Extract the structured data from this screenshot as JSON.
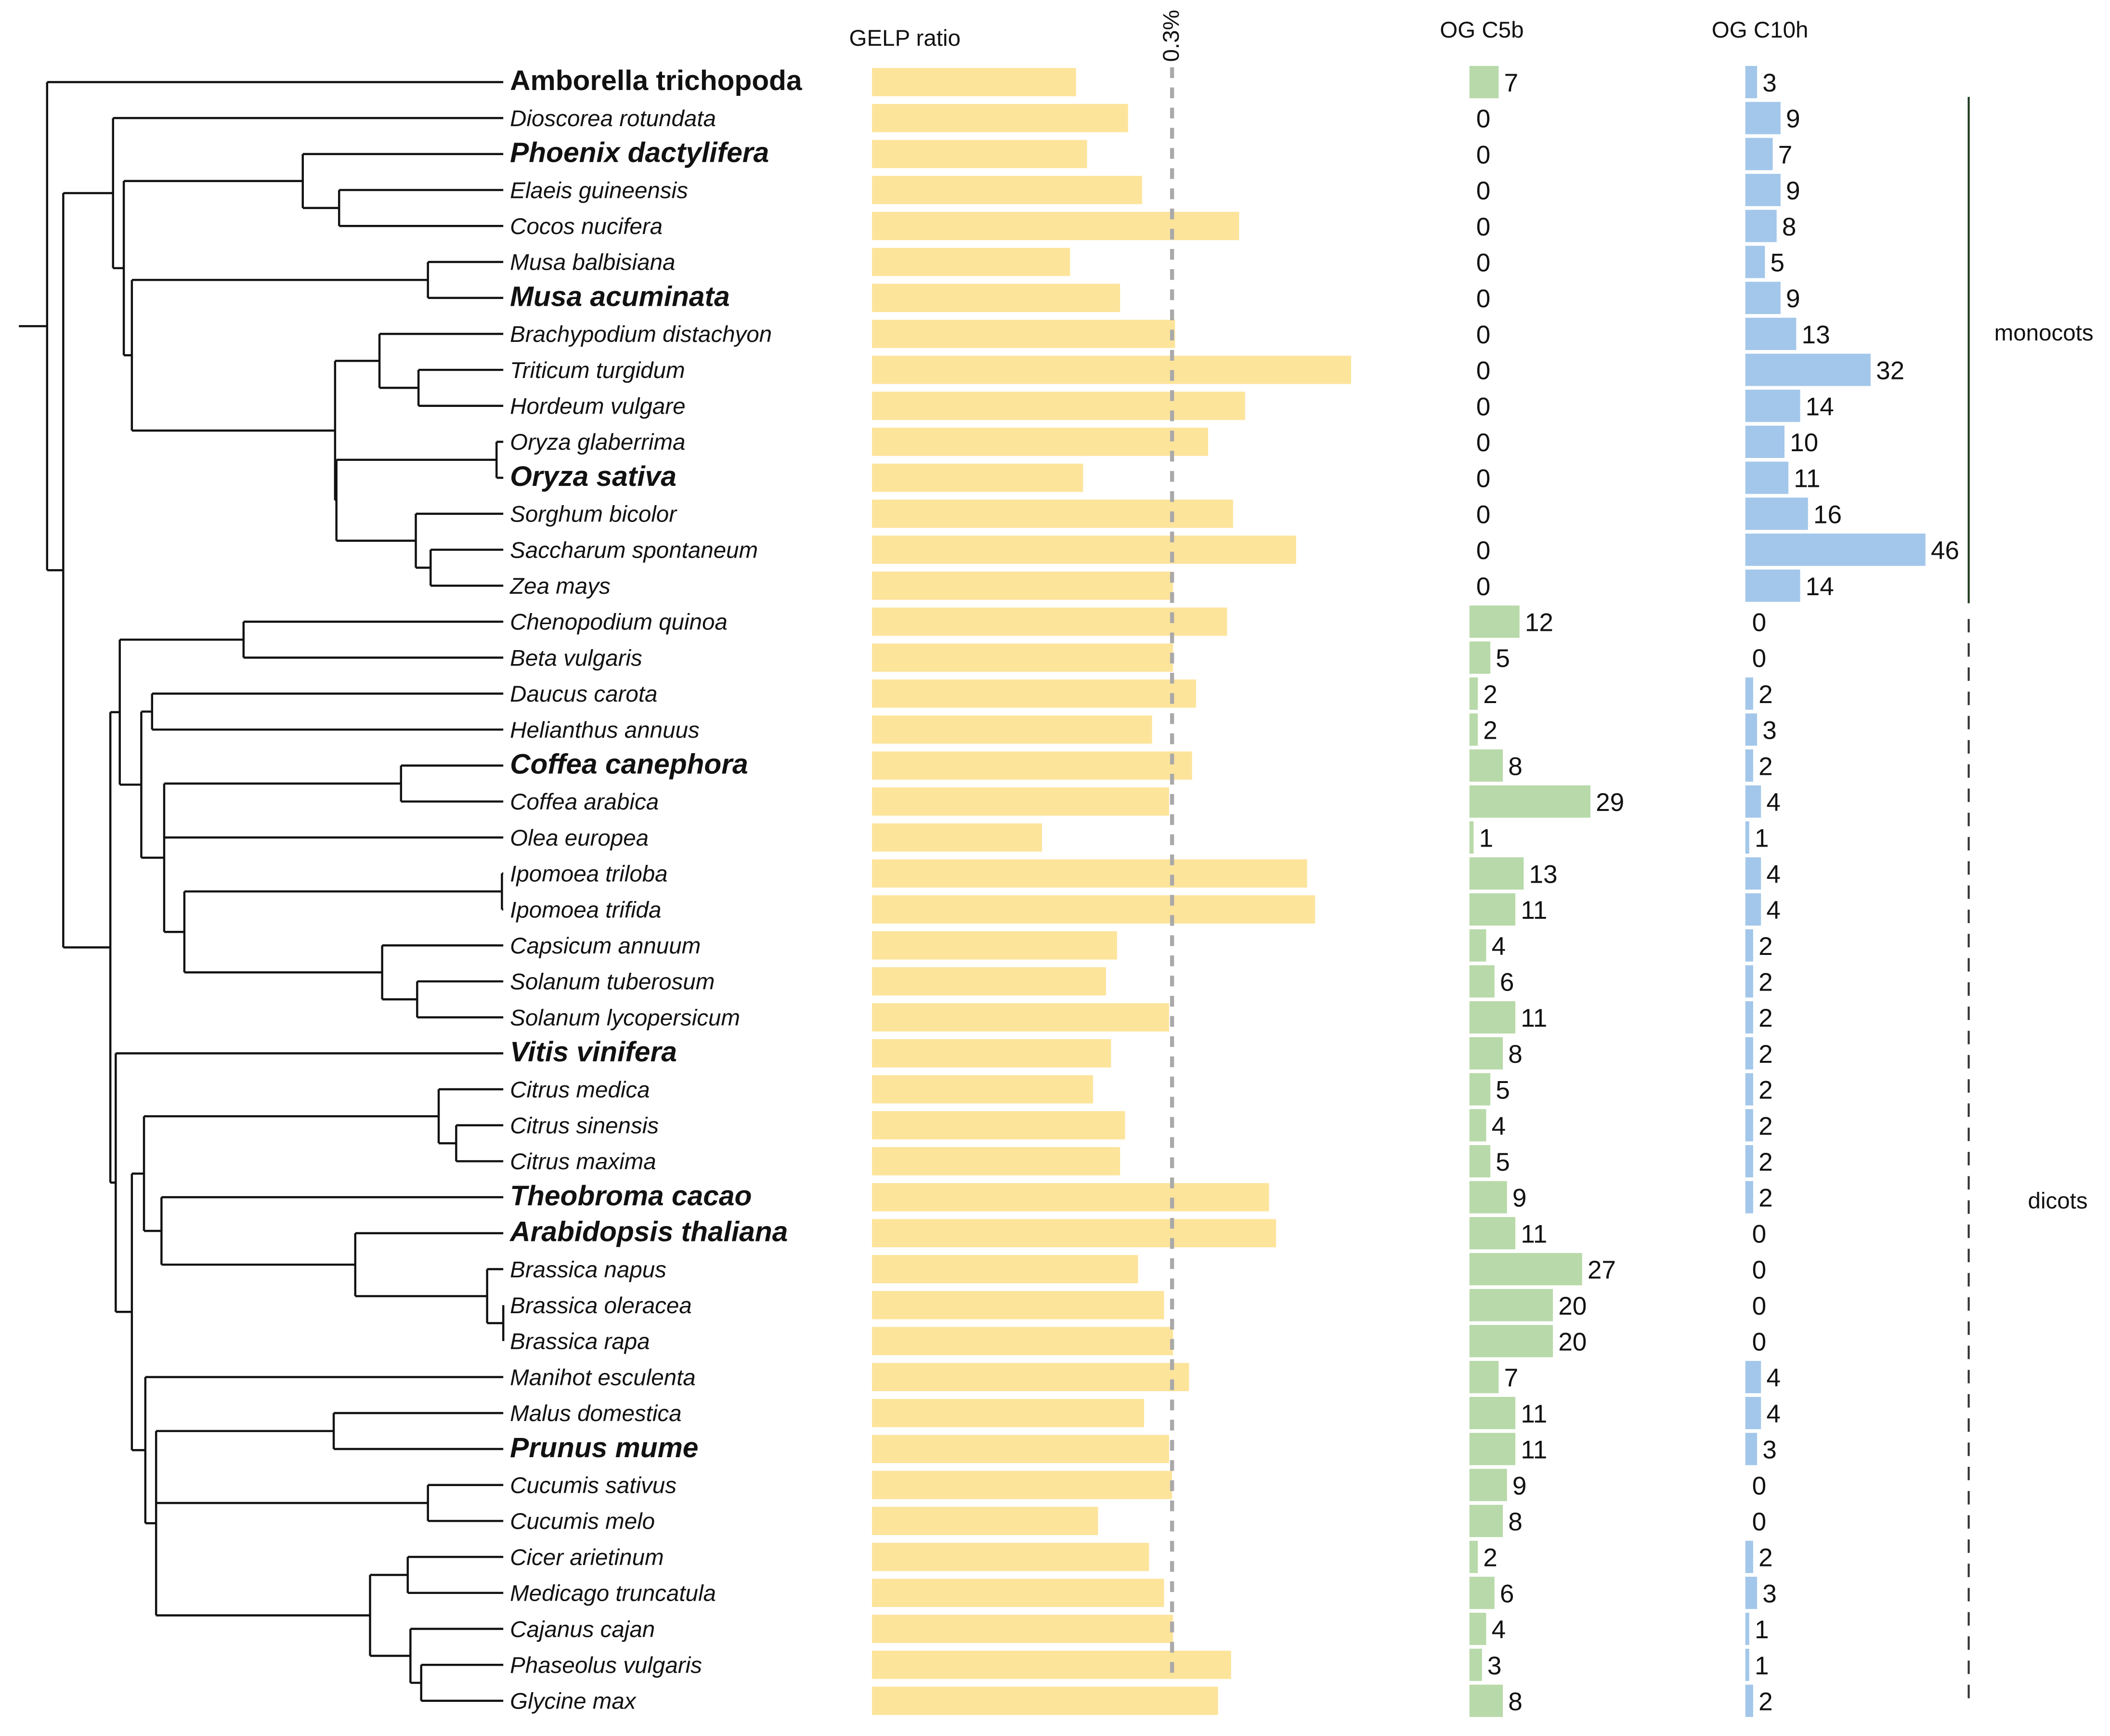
{
  "chart_data": {
    "type": "bar",
    "description_free": true,
    "columns": {
      "gelp": "GELP ratio",
      "c5b": "OG C5b",
      "c10h": "OG C10h"
    },
    "reference_line": {
      "label": "0.3%",
      "value": 0.3
    },
    "groups": [
      {
        "label": "monocots",
        "from": 1,
        "to": 14,
        "style": "solid"
      },
      {
        "label": "dicots",
        "from": 15,
        "to": 45,
        "style": "dashed"
      }
    ],
    "tree": [
      0,
      [
        [
          1,
          [
            [
              2,
              [
                3,
                4
              ]
            ],
            [
              [
                5,
                6
              ],
              [
                [
                  7,
                  [
                    8,
                    9
                  ]
                ],
                [
                  [
                    10,
                    11
                  ],
                  [
                    12,
                    [
                      13,
                      14
                    ]
                  ]
                ]
              ]
            ]
          ]
        ],
        [
          [
            [
              15,
              16
            ],
            [
              [
                17,
                18
              ],
              [
                [
                  19,
                  20
                ],
                21,
                [
                  [
                    22,
                    23
                  ],
                  [
                    24,
                    [
                      25,
                      26
                    ]
                  ]
                ]
              ]
            ]
          ],
          [
            27,
            [
              [
                [
                  28,
                  [
                    29,
                    30
                  ]
                ],
                [
                  31,
                  [
                    32,
                    [
                      33,
                      [
                        34,
                        35
                      ]
                    ]
                  ]
                ]
              ],
              [
                36,
                [
                  [
                    37,
                    38
                  ],
                  [
                    39,
                    40
                  ],
                  [
                    [
                      41,
                      42
                    ],
                    [
                      43,
                      [
                        44,
                        45
                      ]
                    ]
                  ]
                ]
              ]
            ]
          ]
        ]
      ]
    ],
    "species": [
      {
        "name": "Amborella trichopoda",
        "style": "boldupright",
        "gelp": 0.204,
        "c5b": 7,
        "c10h": 3
      },
      {
        "name": "Dioscorea rotundata",
        "style": "italic",
        "gelp": 0.256,
        "c5b": 0,
        "c10h": 9
      },
      {
        "name": "Phoenix dactylifera",
        "style": "bold",
        "gelp": 0.215,
        "c5b": 0,
        "c10h": 7
      },
      {
        "name": "Elaeis guineensis",
        "style": "italic",
        "gelp": 0.27,
        "c5b": 0,
        "c10h": 9
      },
      {
        "name": "Cocos nucifera",
        "style": "italic",
        "gelp": 0.367,
        "c5b": 0,
        "c10h": 8
      },
      {
        "name": "Musa balbisiana",
        "style": "italic",
        "gelp": 0.198,
        "c5b": 0,
        "c10h": 5
      },
      {
        "name": "Musa acuminata",
        "style": "bold",
        "gelp": 0.248,
        "c5b": 0,
        "c10h": 9
      },
      {
        "name": "Brachypodium distachyon",
        "style": "italic",
        "gelp": 0.303,
        "c5b": 0,
        "c10h": 13
      },
      {
        "name": "Triticum turgidum",
        "style": "italic",
        "gelp": 0.479,
        "c5b": 0,
        "c10h": 32
      },
      {
        "name": "Hordeum vulgare",
        "style": "italic",
        "gelp": 0.373,
        "c5b": 0,
        "c10h": 14
      },
      {
        "name": "Oryza glaberrima",
        "style": "italic",
        "gelp": 0.336,
        "c5b": 0,
        "c10h": 10
      },
      {
        "name": "Oryza sativa",
        "style": "bold",
        "gelp": 0.211,
        "c5b": 0,
        "c10h": 11
      },
      {
        "name": "Sorghum bicolor",
        "style": "italic",
        "gelp": 0.361,
        "c5b": 0,
        "c10h": 16
      },
      {
        "name": "Saccharum spontaneum",
        "style": "italic",
        "gelp": 0.424,
        "c5b": 0,
        "c10h": 46
      },
      {
        "name": "Zea mays",
        "style": "italic",
        "gelp": 0.301,
        "c5b": 0,
        "c10h": 14
      },
      {
        "name": "Chenopodium quinoa",
        "style": "italic",
        "gelp": 0.355,
        "c5b": 12,
        "c10h": 0
      },
      {
        "name": "Beta vulgaris",
        "style": "italic",
        "gelp": 0.301,
        "c5b": 5,
        "c10h": 0
      },
      {
        "name": "Daucus carota",
        "style": "italic",
        "gelp": 0.324,
        "c5b": 2,
        "c10h": 2
      },
      {
        "name": "Helianthus annuus",
        "style": "italic",
        "gelp": 0.28,
        "c5b": 2,
        "c10h": 3
      },
      {
        "name": "Coffea canephora",
        "style": "bold",
        "gelp": 0.32,
        "c5b": 8,
        "c10h": 2
      },
      {
        "name": "Coffea arabica",
        "style": "italic",
        "gelp": 0.297,
        "c5b": 29,
        "c10h": 4
      },
      {
        "name": "Olea europea",
        "style": "italic",
        "gelp": 0.17,
        "c5b": 1,
        "c10h": 1
      },
      {
        "name": "Ipomoea triloba",
        "style": "italic",
        "gelp": 0.435,
        "c5b": 13,
        "c10h": 4
      },
      {
        "name": "Ipomoea trifida",
        "style": "italic",
        "gelp": 0.443,
        "c5b": 11,
        "c10h": 4
      },
      {
        "name": "Capsicum annuum",
        "style": "italic",
        "gelp": 0.245,
        "c5b": 4,
        "c10h": 2
      },
      {
        "name": "Solanum tuberosum",
        "style": "italic",
        "gelp": 0.234,
        "c5b": 6,
        "c10h": 2
      },
      {
        "name": "Solanum lycopersicum",
        "style": "italic",
        "gelp": 0.297,
        "c5b": 11,
        "c10h": 2
      },
      {
        "name": "Vitis vinifera",
        "style": "bold",
        "gelp": 0.239,
        "c5b": 8,
        "c10h": 2
      },
      {
        "name": "Citrus medica",
        "style": "italic",
        "gelp": 0.221,
        "c5b": 5,
        "c10h": 2
      },
      {
        "name": "Citrus sinensis",
        "style": "italic",
        "gelp": 0.253,
        "c5b": 4,
        "c10h": 2
      },
      {
        "name": "Citrus maxima",
        "style": "italic",
        "gelp": 0.248,
        "c5b": 5,
        "c10h": 2
      },
      {
        "name": "Theobroma cacao",
        "style": "bold",
        "gelp": 0.397,
        "c5b": 9,
        "c10h": 2
      },
      {
        "name": "Arabidopsis thaliana",
        "style": "bold",
        "gelp": 0.404,
        "c5b": 11,
        "c10h": 0
      },
      {
        "name": "Brassica napus",
        "style": "italic",
        "gelp": 0.266,
        "c5b": 27,
        "c10h": 0
      },
      {
        "name": "Brassica oleracea",
        "style": "italic",
        "gelp": 0.292,
        "c5b": 20,
        "c10h": 0
      },
      {
        "name": "Brassica rapa",
        "style": "italic",
        "gelp": 0.301,
        "c5b": 20,
        "c10h": 0
      },
      {
        "name": "Manihot esculenta",
        "style": "italic",
        "gelp": 0.317,
        "c5b": 7,
        "c10h": 4
      },
      {
        "name": "Malus domestica",
        "style": "italic",
        "gelp": 0.272,
        "c5b": 11,
        "c10h": 4
      },
      {
        "name": "Prunus mume",
        "style": "bold",
        "gelp": 0.297,
        "c5b": 11,
        "c10h": 3
      },
      {
        "name": "Cucumis sativus",
        "style": "italic",
        "gelp": 0.3,
        "c5b": 9,
        "c10h": 0
      },
      {
        "name": "Cucumis melo",
        "style": "italic",
        "gelp": 0.226,
        "c5b": 8,
        "c10h": 0
      },
      {
        "name": "Cicer arietinum",
        "style": "italic",
        "gelp": 0.277,
        "c5b": 2,
        "c10h": 2
      },
      {
        "name": "Medicago truncatula",
        "style": "italic",
        "gelp": 0.292,
        "c5b": 6,
        "c10h": 3
      },
      {
        "name": "Cajanus cajan",
        "style": "italic",
        "gelp": 0.301,
        "c5b": 4,
        "c10h": 1
      },
      {
        "name": "Phaseolus vulgaris",
        "style": "italic",
        "gelp": 0.359,
        "c5b": 3,
        "c10h": 1
      },
      {
        "name": "Glycine max",
        "style": "italic",
        "gelp": 0.346,
        "c5b": 8,
        "c10h": 2
      }
    ],
    "colors": {
      "gelp": "#fde49b",
      "c5b": "#b8d9a9",
      "c10h": "#a3c7ea",
      "reference": "#a9a9a9",
      "tree": "#111111"
    }
  }
}
